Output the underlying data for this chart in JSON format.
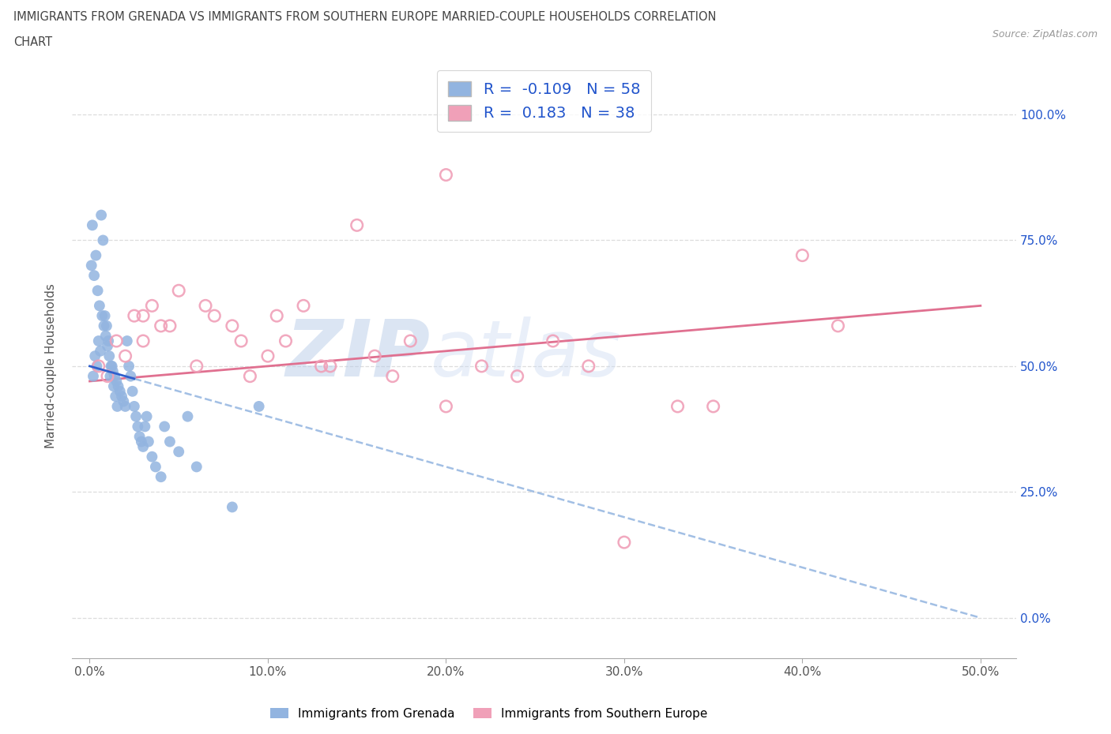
{
  "title_line1": "IMMIGRANTS FROM GRENADA VS IMMIGRANTS FROM SOUTHERN EUROPE MARRIED-COUPLE HOUSEHOLDS CORRELATION",
  "title_line2": "CHART",
  "source_text": "Source: ZipAtlas.com",
  "ylabel": "Married-couple Households",
  "xticklabels": [
    "0.0%",
    "10.0%",
    "20.0%",
    "30.0%",
    "40.0%",
    "50.0%"
  ],
  "xticks": [
    0,
    10,
    20,
    30,
    40,
    50
  ],
  "yticklabels": [
    "0.0%",
    "25.0%",
    "50.0%",
    "75.0%",
    "100.0%"
  ],
  "yticks": [
    0,
    25,
    50,
    75,
    100
  ],
  "xlim": [
    -1,
    52
  ],
  "ylim": [
    -8,
    108
  ],
  "grenada_R": -0.109,
  "grenada_N": 58,
  "southern_europe_R": 0.183,
  "southern_europe_N": 38,
  "grenada_color": "#92b4e0",
  "southern_europe_color": "#f0a0b8",
  "watermark_color": "#c8d8ee",
  "background_color": "#ffffff",
  "grid_color": "#dddddd",
  "title_color": "#444444",
  "legend_R_color": "#2255cc",
  "right_axis_color": "#2255cc",
  "grenada_trendline_solid_color": "#3060cc",
  "grenada_trendline_dash_color": "#92b4e0",
  "southern_trendline_color": "#e07090",
  "grenada_x": [
    0.2,
    0.3,
    0.4,
    0.5,
    0.6,
    0.7,
    0.8,
    0.9,
    1.0,
    1.1,
    1.2,
    1.3,
    1.4,
    1.5,
    1.6,
    1.7,
    1.8,
    1.9,
    2.0,
    2.1,
    2.2,
    2.3,
    2.4,
    2.5,
    2.6,
    2.7,
    2.8,
    2.9,
    3.0,
    3.1,
    3.2,
    3.3,
    3.5,
    3.7,
    4.0,
    4.2,
    4.5,
    5.0,
    5.5,
    6.0,
    0.1,
    0.15,
    0.25,
    0.35,
    0.45,
    0.55,
    0.65,
    0.75,
    0.85,
    0.95,
    1.05,
    1.15,
    1.25,
    1.35,
    1.45,
    1.55,
    8.0,
    9.5
  ],
  "grenada_y": [
    48,
    52,
    50,
    55,
    53,
    60,
    58,
    56,
    54,
    52,
    50,
    49,
    48,
    47,
    46,
    45,
    44,
    43,
    42,
    55,
    50,
    48,
    45,
    42,
    40,
    38,
    36,
    35,
    34,
    38,
    40,
    35,
    32,
    30,
    28,
    38,
    35,
    33,
    40,
    30,
    70,
    78,
    68,
    72,
    65,
    62,
    80,
    75,
    60,
    58,
    55,
    48,
    50,
    46,
    44,
    42,
    22,
    42
  ],
  "southern_europe_x": [
    0.5,
    1.0,
    1.5,
    2.0,
    2.5,
    3.0,
    3.5,
    4.0,
    5.0,
    6.0,
    7.0,
    8.0,
    9.0,
    10.0,
    11.0,
    12.0,
    13.0,
    15.0,
    16.0,
    17.0,
    18.0,
    20.0,
    22.0,
    24.0,
    26.0,
    28.0,
    30.0,
    33.0,
    35.0,
    40.0,
    42.0,
    3.0,
    4.5,
    6.5,
    8.5,
    10.5,
    13.5,
    20.0
  ],
  "southern_europe_y": [
    50,
    48,
    55,
    52,
    60,
    55,
    62,
    58,
    65,
    50,
    60,
    58,
    48,
    52,
    55,
    62,
    50,
    78,
    52,
    48,
    55,
    42,
    50,
    48,
    55,
    50,
    15,
    42,
    42,
    72,
    58,
    60,
    58,
    62,
    55,
    60,
    50,
    88
  ],
  "trendline_grenada_x0": 0,
  "trendline_grenada_x1": 50,
  "trendline_grenada_y0": 50,
  "trendline_grenada_y1": 0,
  "trendline_southern_x0": 0,
  "trendline_southern_x1": 50,
  "trendline_southern_y0": 47,
  "trendline_southern_y1": 62
}
